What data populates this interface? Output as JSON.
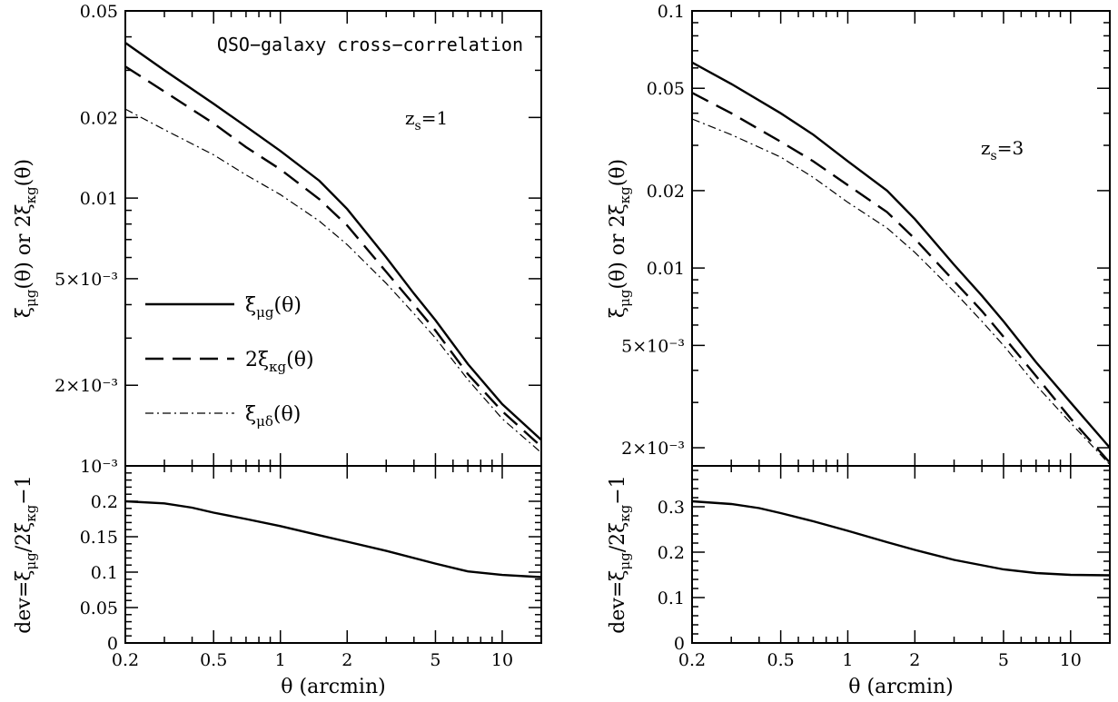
{
  "chart_data": [
    {
      "type": "line",
      "panel": "left-top",
      "title": "QSO−galaxy cross−correlation",
      "annotation": "z_s=1",
      "annotation_base": "z",
      "annotation_sub": "s",
      "annotation_rest": "=1",
      "xscale": "log",
      "yscale": "log",
      "xlim": [
        0.2,
        15
      ],
      "ylim": [
        0.001,
        0.05
      ],
      "ylabel": "ξ_μg(θ) or 2ξ_κg(θ)",
      "ylabel_parts": {
        "xi1": "ξ",
        "sub1": "μg",
        "arg1": "(θ) or 2",
        "xi2": "ξ",
        "sub2": "κg",
        "arg2": "(θ)"
      },
      "ytick_labels": [
        "0.05",
        "0.02",
        "0.01",
        "5×10⁻³",
        "2×10⁻³",
        "10⁻³"
      ],
      "ytick_values": [
        0.05,
        0.02,
        0.01,
        0.005,
        0.002,
        0.001
      ],
      "legend_position": "left-middle",
      "series": [
        {
          "name": "ξ_μg(θ)",
          "legend_parts": {
            "main": "ξ",
            "sub": "μg",
            "rest": "(θ)"
          },
          "style": "solid",
          "x": [
            0.2,
            0.3,
            0.5,
            0.7,
            1,
            1.5,
            2,
            3,
            4,
            5,
            7,
            10,
            15
          ],
          "y": [
            0.038,
            0.03,
            0.0225,
            0.0185,
            0.015,
            0.0116,
            0.0091,
            0.006,
            0.0044,
            0.0035,
            0.0024,
            0.0017,
            0.00125
          ]
        },
        {
          "name": "2ξ_κg(θ)",
          "legend_parts": {
            "main": "2ξ",
            "sub": "κg",
            "rest": "(θ)"
          },
          "style": "dashed",
          "x": [
            0.2,
            0.3,
            0.5,
            0.7,
            1,
            1.5,
            2,
            3,
            4,
            5,
            7,
            10,
            15
          ],
          "y": [
            0.031,
            0.025,
            0.019,
            0.0155,
            0.0128,
            0.0099,
            0.0079,
            0.0053,
            0.004,
            0.0032,
            0.0022,
            0.0016,
            0.00118
          ]
        },
        {
          "name": "ξ_μδ(θ)",
          "legend_parts": {
            "main": "ξ",
            "sub": "μδ",
            "rest": "(θ)"
          },
          "style": "dashdot",
          "x": [
            0.2,
            0.3,
            0.5,
            0.7,
            1,
            1.5,
            2,
            3,
            4,
            5,
            7,
            10,
            15
          ],
          "y": [
            0.0215,
            0.018,
            0.0145,
            0.0122,
            0.0103,
            0.0082,
            0.0067,
            0.0048,
            0.0037,
            0.003,
            0.0021,
            0.0015,
            0.00112
          ]
        }
      ]
    },
    {
      "type": "line",
      "panel": "left-bottom",
      "xscale": "log",
      "xlim": [
        0.2,
        15
      ],
      "ylim": [
        0,
        0.25
      ],
      "xlabel": "θ (arcmin)",
      "ylabel": "dev=ξ_μg/2ξ_κg−1",
      "ylabel_parts": {
        "pre": "dev=",
        "xi1": "ξ",
        "sub1": "μg",
        "mid": "/2",
        "xi2": "ξ",
        "sub2": "κg",
        "post": "−1"
      },
      "xtick_labels": [
        "0.2",
        "0.5",
        "1",
        "2",
        "5",
        "10"
      ],
      "xtick_values": [
        0.2,
        0.5,
        1,
        2,
        5,
        10
      ],
      "ytick_labels": [
        "0",
        "0.05",
        "0.1",
        "0.15",
        "0.2"
      ],
      "ytick_values": [
        0,
        0.05,
        0.1,
        0.15,
        0.2
      ],
      "series": [
        {
          "style": "solid",
          "x": [
            0.2,
            0.3,
            0.4,
            0.5,
            0.7,
            1,
            1.5,
            2,
            3,
            5,
            7,
            10,
            15
          ],
          "y": [
            0.2,
            0.197,
            0.191,
            0.184,
            0.175,
            0.165,
            0.152,
            0.143,
            0.13,
            0.112,
            0.101,
            0.096,
            0.093
          ]
        }
      ]
    },
    {
      "type": "line",
      "panel": "right-top",
      "annotation": "z_s=3",
      "annotation_base": "z",
      "annotation_sub": "s",
      "annotation_rest": "=3",
      "xscale": "log",
      "yscale": "log",
      "xlim": [
        0.2,
        15
      ],
      "ylim": [
        0.0017,
        0.1
      ],
      "ylabel": "ξ_μg(θ) or 2ξ_κg(θ)",
      "ylabel_parts": {
        "xi1": "ξ",
        "sub1": "μg",
        "arg1": "(θ) or 2",
        "xi2": "ξ",
        "sub2": "κg",
        "arg2": "(θ)"
      },
      "ytick_labels": [
        "0.1",
        "0.05",
        "0.02",
        "0.01",
        "5×10⁻³",
        "2×10⁻³"
      ],
      "ytick_values": [
        0.1,
        0.05,
        0.02,
        0.01,
        0.005,
        0.002
      ],
      "series": [
        {
          "style": "solid",
          "x": [
            0.2,
            0.3,
            0.5,
            0.7,
            1,
            1.5,
            2,
            3,
            4,
            5,
            7,
            10,
            15
          ],
          "y": [
            0.063,
            0.052,
            0.04,
            0.033,
            0.026,
            0.02,
            0.0155,
            0.0103,
            0.0078,
            0.0062,
            0.0043,
            0.003,
            0.002
          ]
        },
        {
          "style": "dashed",
          "x": [
            0.2,
            0.3,
            0.5,
            0.7,
            1,
            1.5,
            2,
            3,
            4,
            5,
            7,
            10,
            15
          ],
          "y": [
            0.048,
            0.04,
            0.031,
            0.026,
            0.021,
            0.0165,
            0.013,
            0.0089,
            0.0068,
            0.0054,
            0.0038,
            0.0026,
            0.00175
          ]
        },
        {
          "style": "dashdot",
          "x": [
            0.2,
            0.3,
            0.5,
            0.7,
            1,
            1.5,
            2,
            3,
            4,
            5,
            7,
            10,
            15
          ],
          "y": [
            0.038,
            0.033,
            0.027,
            0.0225,
            0.018,
            0.0143,
            0.0115,
            0.0081,
            0.0062,
            0.005,
            0.0035,
            0.0025,
            0.00172
          ]
        }
      ]
    },
    {
      "type": "line",
      "panel": "right-bottom",
      "xscale": "log",
      "xlim": [
        0.2,
        15
      ],
      "ylim": [
        0,
        0.39
      ],
      "xlabel": "θ (arcmin)",
      "ylabel": "dev=ξ_μg/2ξ_κg−1",
      "ylabel_parts": {
        "pre": "dev=",
        "xi1": "ξ",
        "sub1": "μg",
        "mid": "/2",
        "xi2": "ξ",
        "sub2": "κg",
        "post": "−1"
      },
      "xtick_labels": [
        "0.2",
        "0.5",
        "1",
        "2",
        "5",
        "10"
      ],
      "xtick_values": [
        0.2,
        0.5,
        1,
        2,
        5,
        10
      ],
      "ytick_labels": [
        "0",
        "0.1",
        "0.2",
        "0.3"
      ],
      "ytick_values": [
        0,
        0.1,
        0.2,
        0.3
      ],
      "series": [
        {
          "style": "solid",
          "x": [
            0.2,
            0.3,
            0.4,
            0.5,
            0.7,
            1,
            1.5,
            2,
            3,
            5,
            7,
            10,
            15
          ],
          "y": [
            0.312,
            0.306,
            0.297,
            0.286,
            0.268,
            0.247,
            0.222,
            0.205,
            0.183,
            0.162,
            0.154,
            0.15,
            0.149
          ]
        }
      ]
    }
  ]
}
